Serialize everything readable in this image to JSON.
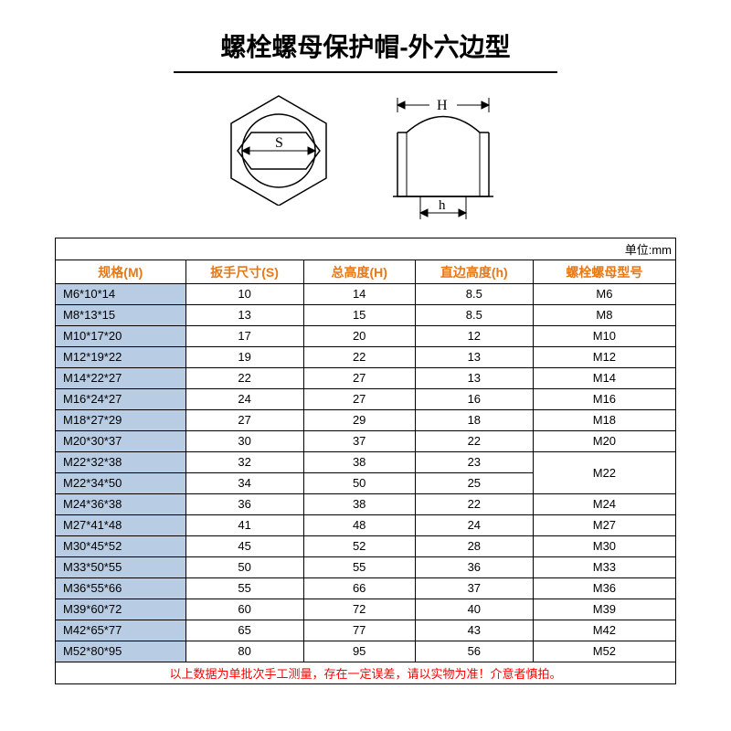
{
  "title": "螺栓螺母保护帽-外六边型",
  "unit_label": "单位:mm",
  "diagram": {
    "label_S": "S",
    "label_H": "H",
    "label_h": "h",
    "stroke": "#000000"
  },
  "table": {
    "columns": [
      "规格(M)",
      "扳手尺寸(S)",
      "总高度(H)",
      "直边高度(h)",
      "螺栓螺母型号"
    ],
    "header_color": "#e67817",
    "spec_bg": "#b8cce4",
    "rows": [
      {
        "spec": "M6*10*14",
        "s": "10",
        "H": "14",
        "h": "8.5",
        "model": "M6"
      },
      {
        "spec": "M8*13*15",
        "s": "13",
        "H": "15",
        "h": "8.5",
        "model": "M8"
      },
      {
        "spec": "M10*17*20",
        "s": "17",
        "H": "20",
        "h": "12",
        "model": "M10"
      },
      {
        "spec": "M12*19*22",
        "s": "19",
        "H": "22",
        "h": "13",
        "model": "M12"
      },
      {
        "spec": "M14*22*27",
        "s": "22",
        "H": "27",
        "h": "13",
        "model": "M14"
      },
      {
        "spec": "M16*24*27",
        "s": "24",
        "H": "27",
        "h": "16",
        "model": "M16"
      },
      {
        "spec": "M18*27*29",
        "s": "27",
        "H": "29",
        "h": "18",
        "model": "M18"
      },
      {
        "spec": "M20*30*37",
        "s": "30",
        "H": "37",
        "h": "22",
        "model": "M20"
      },
      {
        "spec": "M22*32*38",
        "s": "32",
        "H": "38",
        "h": "23",
        "model": "M22",
        "merge_model_rows": 2
      },
      {
        "spec": "M22*34*50",
        "s": "34",
        "H": "50",
        "h": "25",
        "model": null
      },
      {
        "spec": "M24*36*38",
        "s": "36",
        "H": "38",
        "h": "22",
        "model": "M24"
      },
      {
        "spec": "M27*41*48",
        "s": "41",
        "H": "48",
        "h": "24",
        "model": "M27"
      },
      {
        "spec": "M30*45*52",
        "s": "45",
        "H": "52",
        "h": "28",
        "model": "M30"
      },
      {
        "spec": "M33*50*55",
        "s": "50",
        "H": "55",
        "h": "36",
        "model": "M33"
      },
      {
        "spec": "M36*55*66",
        "s": "55",
        "H": "66",
        "h": "37",
        "model": "M36"
      },
      {
        "spec": "M39*60*72",
        "s": "60",
        "H": "72",
        "h": "40",
        "model": "M39"
      },
      {
        "spec": "M42*65*77",
        "s": "65",
        "H": "77",
        "h": "43",
        "model": "M42"
      },
      {
        "spec": "M52*80*95",
        "s": "80",
        "H": "95",
        "h": "56",
        "model": "M52"
      }
    ]
  },
  "footnote": "以上数据为单批次手工测量，存在一定误差，请以实物为准！介意者慎拍。"
}
